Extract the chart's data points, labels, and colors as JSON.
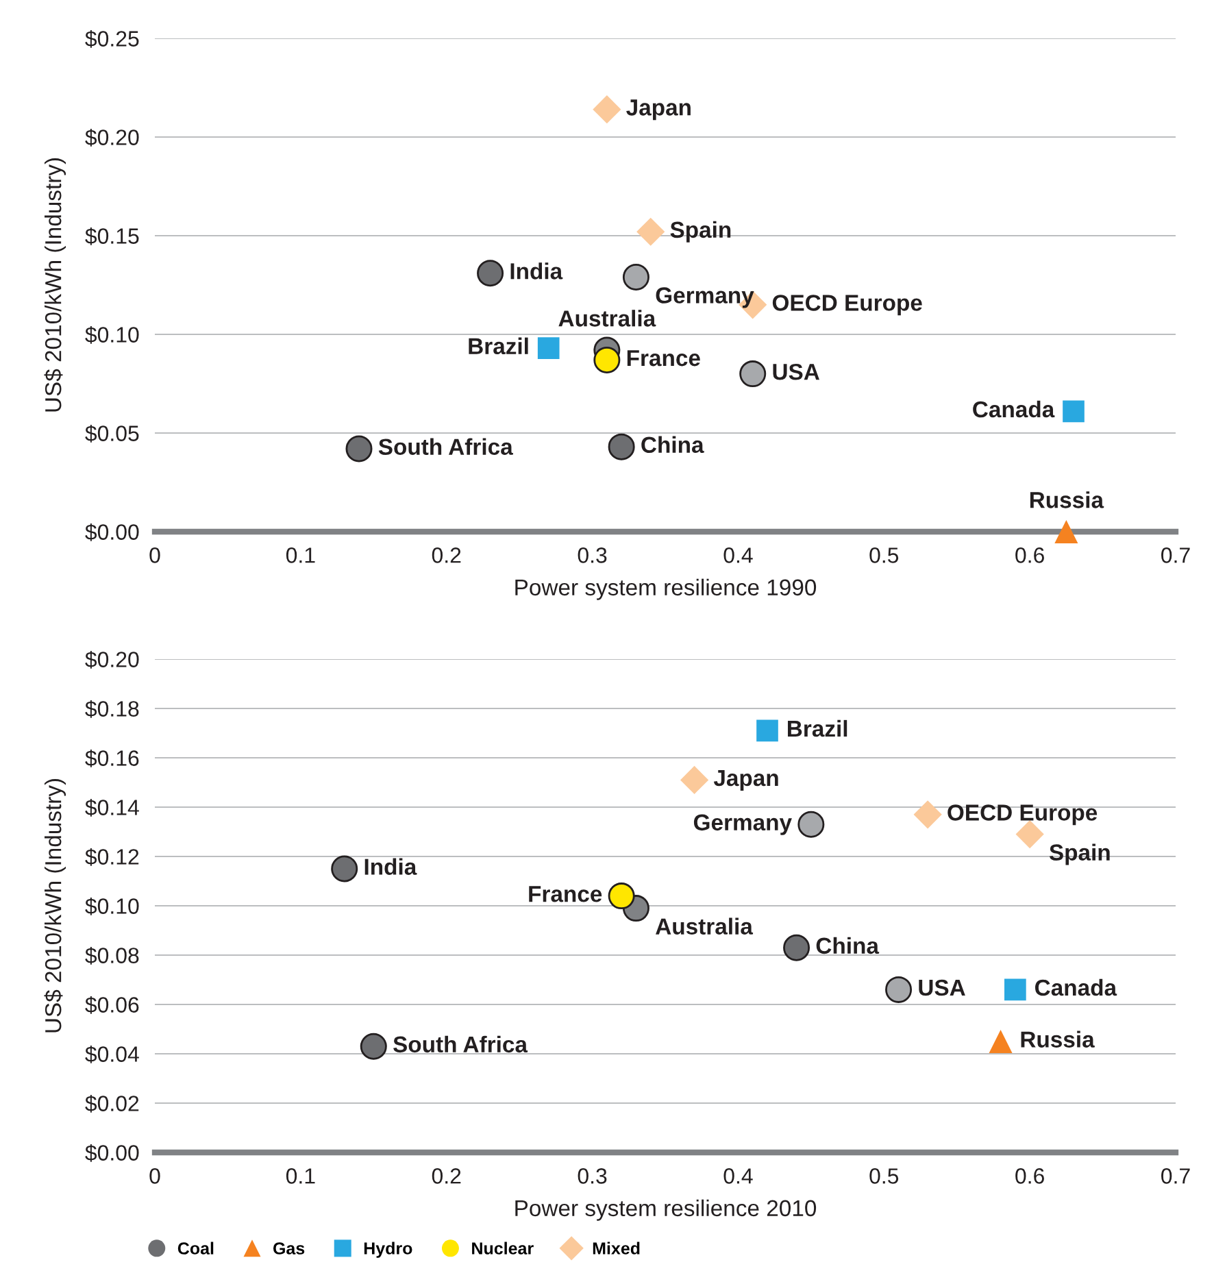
{
  "chart_data": [
    {
      "type": "scatter",
      "xlabel": "Power system resilience 1990",
      "ylabel": "US$ 2010/kWh (Industry)",
      "xlim": [
        0,
        0.7
      ],
      "xticks": [
        0,
        0.1,
        0.2,
        0.3,
        0.4,
        0.5,
        0.6,
        0.7
      ],
      "ylim": [
        0,
        0.25
      ],
      "yticks": [
        {
          "value": 0,
          "label": "$0.00"
        },
        {
          "value": 0.05,
          "label": "$0.05"
        },
        {
          "value": 0.1,
          "label": "$0.10"
        },
        {
          "value": 0.15,
          "label": "$0.15"
        },
        {
          "value": 0.2,
          "label": "$0.20"
        },
        {
          "value": 0.25,
          "label": "$0.25"
        }
      ],
      "grid": "y",
      "series": [
        {
          "color": "#6d6e71",
          "marker": "circle",
          "x": [
            0.23,
            0.14,
            0.32,
            0.41,
            0.31,
            0.33
          ],
          "values": [
            0.131,
            0.042,
            0.043,
            0.08,
            0.092,
            0.129
          ],
          "colors": [
            "#6d6e71",
            "#6d6e71",
            "#6d6e71",
            "#a7a9ac",
            "#808285",
            "#a7a9ac"
          ]
        },
        {
          "color": "#f58220",
          "marker": "triangle",
          "x": [
            0.625
          ],
          "values": [
            0.0
          ]
        },
        {
          "color": "#29a8e0",
          "marker": "square",
          "x": [
            0.27,
            0.63
          ],
          "values": [
            0.093,
            0.061
          ]
        },
        {
          "color": "#ffe600",
          "marker": "circle",
          "x": [
            0.31
          ],
          "values": [
            0.087
          ]
        },
        {
          "color": "#fbc99a",
          "marker": "diamond",
          "x": [
            0.31,
            0.34,
            0.41
          ],
          "values": [
            0.214,
            0.152,
            0.115
          ]
        }
      ],
      "annotations": [
        {
          "text": "Japan",
          "x": 0.31,
          "y": 0.214
        },
        {
          "text": "Spain",
          "x": 0.34,
          "y": 0.152
        },
        {
          "text": "India",
          "x": 0.23,
          "y": 0.131
        },
        {
          "text": "Germany",
          "x": 0.33,
          "y": 0.129
        },
        {
          "text": "OECD Europe",
          "x": 0.41,
          "y": 0.115
        },
        {
          "text": "Australia",
          "x": 0.31,
          "y": 0.092
        },
        {
          "text": "Brazil",
          "x": 0.27,
          "y": 0.093
        },
        {
          "text": "France",
          "x": 0.31,
          "y": 0.087
        },
        {
          "text": "USA",
          "x": 0.41,
          "y": 0.08
        },
        {
          "text": "Canada",
          "x": 0.63,
          "y": 0.061
        },
        {
          "text": "South Africa",
          "x": 0.14,
          "y": 0.042
        },
        {
          "text": "China",
          "x": 0.32,
          "y": 0.043
        },
        {
          "text": "Russia",
          "x": 0.625,
          "y": 0.0
        }
      ]
    },
    {
      "type": "scatter",
      "xlabel": "Power system resilience 2010",
      "ylabel": "US$ 2010/kWh (Industry)",
      "xlim": [
        0,
        0.7
      ],
      "xticks": [
        0,
        0.1,
        0.2,
        0.3,
        0.4,
        0.5,
        0.6,
        0.7
      ],
      "ylim": [
        0,
        0.2
      ],
      "yticks": [
        {
          "value": 0,
          "label": "$0.00"
        },
        {
          "value": 0.02,
          "label": "$0.02"
        },
        {
          "value": 0.04,
          "label": "$0.04"
        },
        {
          "value": 0.06,
          "label": "$0.06"
        },
        {
          "value": 0.08,
          "label": "$0.08"
        },
        {
          "value": 0.1,
          "label": "$0.10"
        },
        {
          "value": 0.12,
          "label": "$0.12"
        },
        {
          "value": 0.14,
          "label": "$0.14"
        },
        {
          "value": 0.16,
          "label": "$0.16"
        },
        {
          "value": 0.18,
          "label": "$0.18"
        },
        {
          "value": 0.2,
          "label": "$0.20"
        }
      ],
      "grid": "y",
      "legend": "bottom",
      "series": [
        {
          "name": "Coal",
          "color": "#6d6e71",
          "marker": "circle",
          "x": [
            0.13,
            0.15,
            0.44,
            0.51,
            0.33,
            0.45
          ],
          "values": [
            0.115,
            0.043,
            0.083,
            0.066,
            0.099,
            0.133
          ],
          "colors": [
            "#6d6e71",
            "#6d6e71",
            "#6d6e71",
            "#a7a9ac",
            "#808285",
            "#a7a9ac"
          ]
        },
        {
          "name": "Gas",
          "color": "#f58220",
          "marker": "triangle",
          "x": [
            0.58
          ],
          "values": [
            0.045
          ]
        },
        {
          "name": "Hydro",
          "color": "#29a8e0",
          "marker": "square",
          "x": [
            0.42,
            0.59
          ],
          "values": [
            0.171,
            0.066
          ]
        },
        {
          "name": "Nuclear",
          "color": "#ffe600",
          "marker": "circle",
          "x": [
            0.32
          ],
          "values": [
            0.104
          ]
        },
        {
          "name": "Mixed",
          "color": "#fbc99a",
          "marker": "diamond",
          "x": [
            0.37,
            0.53,
            0.6
          ],
          "values": [
            0.151,
            0.137,
            0.129
          ]
        }
      ],
      "annotations": [
        {
          "text": "Brazil",
          "x": 0.42,
          "y": 0.171
        },
        {
          "text": "Japan",
          "x": 0.37,
          "y": 0.151
        },
        {
          "text": "OECD Europe",
          "x": 0.53,
          "y": 0.137
        },
        {
          "text": "Germany",
          "x": 0.45,
          "y": 0.133
        },
        {
          "text": "Spain",
          "x": 0.6,
          "y": 0.129
        },
        {
          "text": "India",
          "x": 0.13,
          "y": 0.115
        },
        {
          "text": "France",
          "x": 0.32,
          "y": 0.104
        },
        {
          "text": "Australia",
          "x": 0.33,
          "y": 0.099
        },
        {
          "text": "China",
          "x": 0.44,
          "y": 0.083
        },
        {
          "text": "USA",
          "x": 0.51,
          "y": 0.066
        },
        {
          "text": "Canada",
          "x": 0.59,
          "y": 0.066
        },
        {
          "text": "South Africa",
          "x": 0.15,
          "y": 0.043
        },
        {
          "text": "Russia",
          "x": 0.58,
          "y": 0.045
        }
      ]
    }
  ]
}
